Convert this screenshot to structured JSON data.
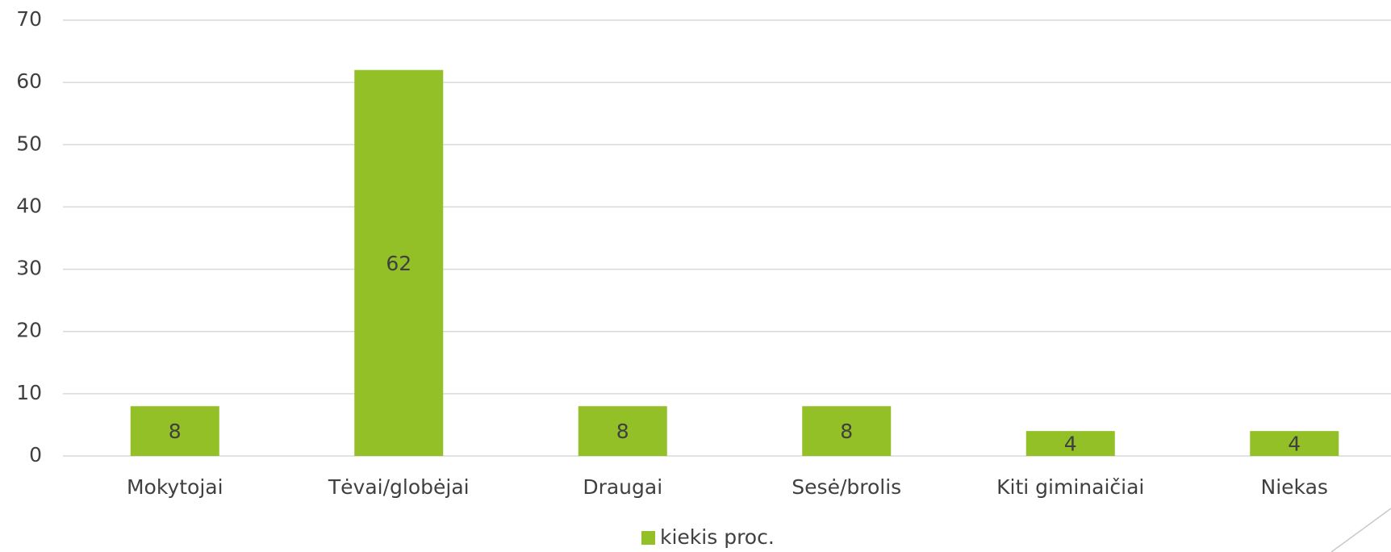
{
  "chart_data": {
    "type": "bar",
    "categories": [
      "Mokytojai",
      "Tėvai/globėjai",
      "Draugai",
      "Sesė/brolis",
      "Kiti giminaičiai",
      "Niekas"
    ],
    "series": [
      {
        "name": "kiekis proc.",
        "color": "#92c026",
        "values": [
          8,
          62,
          8,
          8,
          4,
          4
        ]
      }
    ],
    "ylim": [
      0,
      70
    ],
    "yticks": [
      0,
      10,
      20,
      30,
      40,
      50,
      60,
      70
    ],
    "grid": true,
    "legend": "bottom",
    "data_labels": true
  }
}
